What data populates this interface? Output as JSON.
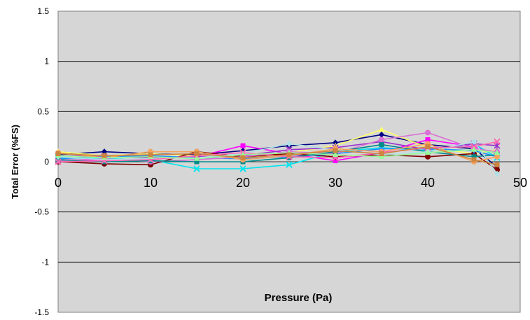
{
  "chart_data": {
    "type": "line",
    "title": "",
    "xlabel": "Pressure  (Pa)",
    "ylabel": "Total Error (%FS)",
    "xlim": [
      0,
      50
    ],
    "ylim": [
      -1.5,
      1.5
    ],
    "xticks": [
      "0",
      "10",
      "20",
      "30",
      "40",
      "50"
    ],
    "yticks": [
      "1.5",
      "1",
      "0.5",
      "0",
      "-0.5",
      "-1",
      "-1.5"
    ],
    "grid": "horizontal",
    "plot_background": "#d6d6d6",
    "legend": "none",
    "x": [
      0,
      5,
      10,
      15,
      20,
      25,
      30,
      35,
      40,
      45,
      47.5
    ],
    "series": [
      {
        "color": "#000080",
        "marker": "diamond",
        "values": [
          0.07,
          0.1,
          0.08,
          0.07,
          0.11,
          0.16,
          0.19,
          0.27,
          0.17,
          0.13,
          -0.05
        ]
      },
      {
        "color": "#ff00ff",
        "marker": "square",
        "values": [
          0.02,
          0.01,
          0.03,
          0.05,
          0.16,
          0.08,
          0.01,
          0.09,
          0.22,
          0.15,
          0.08
        ]
      },
      {
        "color": "#ffff66",
        "marker": "triangle",
        "values": [
          0.1,
          0.06,
          0.08,
          0.06,
          0.04,
          0.09,
          0.16,
          0.32,
          0.14,
          0.08,
          0.12
        ]
      },
      {
        "color": "#00e5ee",
        "marker": "x",
        "values": [
          0.04,
          0.03,
          0.02,
          -0.07,
          -0.07,
          -0.03,
          0.1,
          0.14,
          0.11,
          0.18,
          0.04
        ]
      },
      {
        "color": "#9932cc",
        "marker": "star",
        "values": [
          0.06,
          0.05,
          0.04,
          0.05,
          0.06,
          0.12,
          0.14,
          0.2,
          0.12,
          0.18,
          0.16
        ]
      },
      {
        "color": "#800000",
        "marker": "circle",
        "values": [
          0.0,
          -0.02,
          -0.03,
          0.1,
          0.05,
          0.08,
          0.05,
          0.07,
          0.05,
          0.08,
          -0.08
        ]
      },
      {
        "color": "#1e90ff",
        "marker": "plus",
        "values": [
          0.03,
          0.05,
          0.06,
          0.04,
          0.03,
          0.05,
          0.08,
          0.13,
          0.13,
          0.11,
          0.05
        ]
      },
      {
        "color": "#da70d6",
        "marker": "circle",
        "values": [
          0.01,
          0.03,
          0.0,
          0.02,
          0.05,
          0.1,
          0.08,
          0.22,
          0.29,
          0.13,
          0.1
        ]
      },
      {
        "color": "#008b8b",
        "marker": "square",
        "values": [
          0.02,
          0.0,
          0.01,
          0.0,
          0.0,
          0.04,
          0.1,
          0.17,
          0.1,
          0.05,
          0.07
        ]
      },
      {
        "color": "#b0e0e6",
        "marker": "diamond",
        "values": [
          0.05,
          0.02,
          0.03,
          0.04,
          0.08,
          0.18,
          0.12,
          0.07,
          0.1,
          0.2,
          -0.12
        ]
      },
      {
        "color": "#f4a460",
        "marker": "circle",
        "values": [
          0.09,
          0.04,
          0.1,
          0.1,
          0.02,
          0.06,
          0.13,
          0.1,
          0.18,
          0.0,
          0.05
        ]
      },
      {
        "color": "#ff69b4",
        "marker": "x",
        "values": [
          0.0,
          0.01,
          0.02,
          0.06,
          0.09,
          0.05,
          0.04,
          0.09,
          0.14,
          0.15,
          0.2
        ]
      },
      {
        "color": "#98fb98",
        "marker": "triangle",
        "values": [
          0.06,
          0.04,
          0.05,
          0.03,
          0.07,
          0.09,
          0.07,
          0.05,
          0.09,
          0.12,
          0.09
        ]
      },
      {
        "color": "#cd853f",
        "marker": "square",
        "values": [
          0.08,
          0.06,
          0.07,
          0.08,
          0.04,
          0.07,
          0.11,
          0.08,
          0.15,
          0.02,
          -0.03
        ]
      }
    ]
  }
}
